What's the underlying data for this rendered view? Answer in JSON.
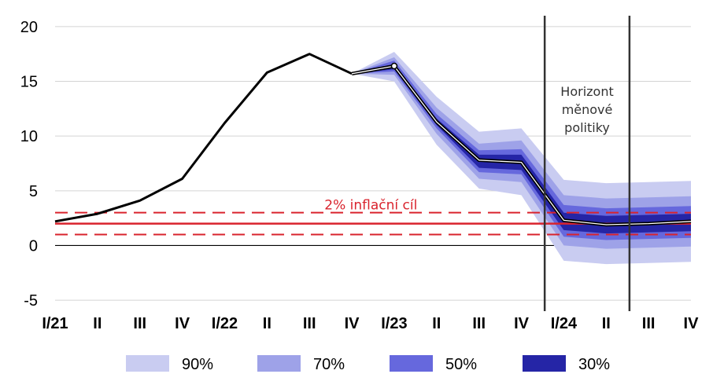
{
  "chart_data": {
    "type": "line",
    "title": "",
    "xlabel": "",
    "ylabel": "",
    "ylim": [
      -6,
      21
    ],
    "yticks": [
      20,
      15,
      10,
      5,
      0,
      -5
    ],
    "categories": [
      "I/21",
      "II",
      "III",
      "IV",
      "I/22",
      "II",
      "III",
      "IV",
      "I/23",
      "II",
      "III",
      "IV",
      "I/24",
      "II",
      "III",
      "IV"
    ],
    "series": [
      {
        "name": "",
        "values": [
          2.2,
          2.9,
          4.1,
          6.1,
          11.2,
          15.8,
          17.5,
          15.7,
          16.4,
          11.3,
          7.8,
          7.6,
          2.3,
          1.9,
          2.0,
          2.2
        ]
      }
    ],
    "fan_start_index": 7,
    "fan_bands": [
      {
        "label": "90%",
        "color": "#c9ccf1",
        "lower": [
          15.7,
          15.0,
          9.2,
          5.2,
          4.6,
          -1.4,
          -1.7,
          -1.6,
          -1.5
        ],
        "upper": [
          15.7,
          17.7,
          13.6,
          10.4,
          10.7,
          6.0,
          5.7,
          5.8,
          5.9
        ]
      },
      {
        "label": "70%",
        "color": "#9ea2e8",
        "lower": [
          15.7,
          15.6,
          10.2,
          6.1,
          5.8,
          0.0,
          -0.3,
          -0.2,
          -0.1
        ],
        "upper": [
          15.7,
          17.2,
          12.6,
          9.3,
          9.6,
          4.6,
          4.3,
          4.4,
          4.5
        ]
      },
      {
        "label": "50%",
        "color": "#6668dd",
        "lower": [
          15.7,
          15.9,
          10.7,
          6.7,
          6.5,
          0.8,
          0.5,
          0.6,
          0.7
        ],
        "upper": [
          15.7,
          16.9,
          12.0,
          8.7,
          8.8,
          3.7,
          3.4,
          3.5,
          3.6
        ]
      },
      {
        "label": "30%",
        "color": "#2525a6",
        "lower": [
          15.7,
          16.1,
          11.0,
          7.1,
          6.9,
          1.4,
          1.1,
          1.2,
          1.3
        ],
        "upper": [
          15.7,
          16.6,
          11.6,
          8.3,
          8.3,
          3.0,
          2.7,
          2.8,
          2.9
        ]
      }
    ],
    "inflation_target": {
      "label": "2% inflační cíl",
      "value": 2,
      "band": [
        1,
        3
      ],
      "color": "#d9232d"
    },
    "horizon": {
      "label_lines": [
        "Horizont",
        "měnové",
        "politiky"
      ],
      "x_positions": [
        11.55,
        13.55
      ]
    },
    "legend": {
      "position": "bottom",
      "entries": [
        "90%",
        "70%",
        "50%",
        "30%"
      ]
    },
    "grid": true
  }
}
